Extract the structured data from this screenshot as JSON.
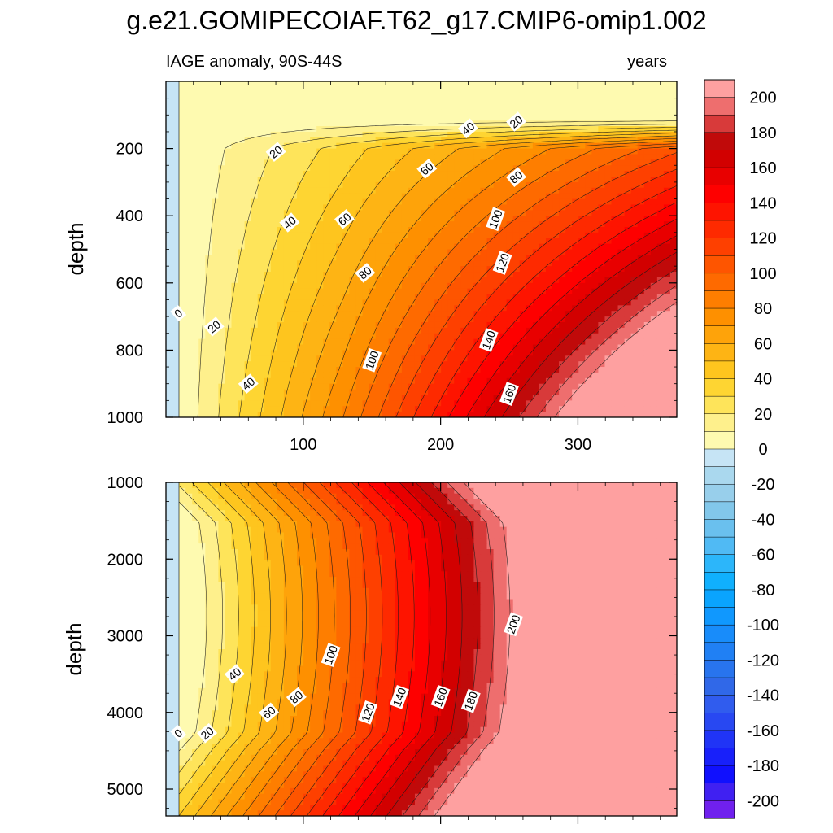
{
  "chart_data": {
    "type": "contour",
    "title": "g.e21.GOMIPECOIAF.T62_g17.CMIP6-omip1.002",
    "subtitle_left": "IAGE anomaly, 90S-44S",
    "subtitle_right": "years",
    "x_range": [
      0,
      372
    ],
    "x_ticks": [
      "100",
      "200",
      "300"
    ],
    "x_tick_values": [
      100,
      200,
      300
    ],
    "colorbar": {
      "levels": [
        -200,
        -190,
        -180,
        -170,
        -160,
        -150,
        -140,
        -130,
        -120,
        -110,
        -100,
        -90,
        -80,
        -70,
        -60,
        -50,
        -40,
        -30,
        -20,
        -10,
        0,
        10,
        20,
        30,
        40,
        50,
        60,
        70,
        80,
        90,
        100,
        110,
        120,
        130,
        140,
        150,
        160,
        170,
        180,
        190,
        200
      ],
      "label_values": [
        200,
        180,
        160,
        140,
        120,
        100,
        80,
        60,
        40,
        20,
        0,
        -20,
        -40,
        -60,
        -80,
        -100,
        -120,
        -140,
        -160,
        -180,
        -200
      ],
      "labels": [
        "200",
        "180",
        "160",
        "140",
        "120",
        "100",
        "80",
        "60",
        "40",
        "20",
        "0",
        "-20",
        "-40",
        "-60",
        "-80",
        "-100",
        "-120",
        "-140",
        "-160",
        "-180",
        "-200"
      ]
    },
    "panels": [
      {
        "name": "upper-ocean",
        "ylabel": "depth",
        "y_range": [
          0,
          1000
        ],
        "y_ticks": [
          "200",
          "400",
          "600",
          "800",
          "1000"
        ],
        "y_tick_values": [
          200,
          400,
          600,
          800,
          1000
        ],
        "contour_labels": [
          {
            "text": "0",
            "x": 9,
            "y": 690
          },
          {
            "text": "20",
            "x": 35,
            "y": 730
          },
          {
            "text": "40",
            "x": 60,
            "y": 900
          },
          {
            "text": "20",
            "x": 80,
            "y": 210
          },
          {
            "text": "40",
            "x": 90,
            "y": 420
          },
          {
            "text": "60",
            "x": 130,
            "y": 410
          },
          {
            "text": "80",
            "x": 145,
            "y": 570
          },
          {
            "text": "100",
            "x": 150,
            "y": 830
          },
          {
            "text": "60",
            "x": 190,
            "y": 260
          },
          {
            "text": "40",
            "x": 220,
            "y": 140
          },
          {
            "text": "20",
            "x": 255,
            "y": 120
          },
          {
            "text": "80",
            "x": 255,
            "y": 285
          },
          {
            "text": "100",
            "x": 240,
            "y": 410
          },
          {
            "text": "120",
            "x": 245,
            "y": 540
          },
          {
            "text": "140",
            "x": 235,
            "y": 770
          },
          {
            "text": "160",
            "x": 250,
            "y": 930
          }
        ]
      },
      {
        "name": "deep-ocean",
        "ylabel": "depth",
        "y_range": [
          1000,
          5350
        ],
        "y_ticks": [
          "1000",
          "2000",
          "3000",
          "4000",
          "5000"
        ],
        "y_tick_values": [
          1000,
          2000,
          3000,
          4000,
          5000
        ],
        "contour_labels": [
          {
            "text": "0",
            "x": 9,
            "y": 4270
          },
          {
            "text": "20",
            "x": 30,
            "y": 4270
          },
          {
            "text": "40",
            "x": 50,
            "y": 3500
          },
          {
            "text": "60",
            "x": 75,
            "y": 4000
          },
          {
            "text": "80",
            "x": 95,
            "y": 3800
          },
          {
            "text": "100",
            "x": 120,
            "y": 3250
          },
          {
            "text": "120",
            "x": 147,
            "y": 4000
          },
          {
            "text": "140",
            "x": 170,
            "y": 3800
          },
          {
            "text": "160",
            "x": 200,
            "y": 3800
          },
          {
            "text": "180",
            "x": 222,
            "y": 3850
          },
          {
            "text": "200",
            "x": 253,
            "y": 2850
          }
        ]
      }
    ]
  }
}
